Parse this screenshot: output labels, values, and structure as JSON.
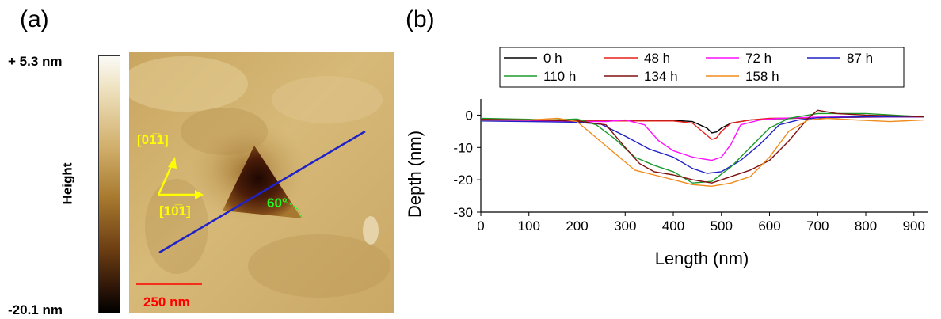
{
  "figure": {
    "panel_a": {
      "label": "(a)",
      "colorbar": {
        "max_label": "+ 5.3 nm",
        "min_label": "-20.1 nm",
        "title": "Height"
      },
      "annotations": {
        "dir1": "[01̅1]",
        "dir2": "[10̅1]",
        "angle": "60°",
        "scale_bar": "250 nm"
      },
      "colors": {
        "arrow": "#ffff00",
        "line": "#1f22c8",
        "angle": "#22ff22",
        "scale": "#ff0000"
      }
    },
    "panel_b": {
      "label": "(b)"
    }
  },
  "chart_data": {
    "type": "line",
    "xlabel": "Length (nm)",
    "ylabel": "Depth (nm)",
    "xlim": [
      0,
      930
    ],
    "ylim": [
      -30,
      5
    ],
    "xticks": [
      0,
      100,
      200,
      300,
      400,
      500,
      600,
      700,
      800,
      900
    ],
    "yticks": [
      0,
      -10,
      -20,
      -30
    ],
    "legend_position": "top",
    "series": [
      {
        "name": "0 h",
        "color": "#000000",
        "x": [
          0,
          100,
          200,
          300,
          400,
          440,
          470,
          480,
          490,
          500,
          520,
          560,
          600,
          700,
          800,
          920
        ],
        "y": [
          -1.3,
          -1.5,
          -1.8,
          -1.8,
          -1.6,
          -2,
          -4,
          -5.5,
          -5.2,
          -4,
          -2.5,
          -1.5,
          -1.2,
          -0.8,
          -0.6,
          -0.5
        ]
      },
      {
        "name": "48 h",
        "color": "#e8201a",
        "x": [
          0,
          100,
          200,
          300,
          400,
          440,
          460,
          480,
          490,
          500,
          520,
          560,
          600,
          700,
          800,
          920
        ],
        "y": [
          -1.3,
          -1.5,
          -1.8,
          -1.8,
          -1.8,
          -2.5,
          -5,
          -7.5,
          -7,
          -5,
          -2.5,
          -1.5,
          -1.0,
          -0.8,
          -0.6,
          -0.5
        ]
      },
      {
        "name": "72 h",
        "color": "#ff10ff",
        "x": [
          0,
          100,
          200,
          260,
          300,
          340,
          370,
          400,
          440,
          480,
          500,
          520,
          540,
          580,
          620,
          700,
          800,
          920
        ],
        "y": [
          -1.5,
          -1.8,
          -2.0,
          -2.0,
          -1.5,
          -3,
          -8,
          -11,
          -13,
          -14,
          -13,
          -9,
          -3,
          -1.5,
          -1.0,
          -0.6,
          -0.5,
          -0.5
        ]
      },
      {
        "name": "87 h",
        "color": "#1f22c8",
        "x": [
          0,
          100,
          200,
          250,
          300,
          350,
          400,
          440,
          470,
          500,
          540,
          580,
          620,
          660,
          700,
          800,
          920
        ],
        "y": [
          -1.8,
          -2.0,
          -2.2,
          -2.8,
          -6.5,
          -10.5,
          -13,
          -16.5,
          -18,
          -17.5,
          -14,
          -9,
          -3,
          -1.5,
          -0.8,
          -0.5,
          -0.5
        ]
      },
      {
        "name": "110 h",
        "color": "#1b9a2c",
        "x": [
          0,
          100,
          150,
          200,
          240,
          280,
          320,
          360,
          400,
          440,
          480,
          520,
          560,
          600,
          640,
          700,
          800,
          920
        ],
        "y": [
          -1.0,
          -1.3,
          -1.5,
          -1.2,
          -3,
          -7.5,
          -13,
          -15.5,
          -17.5,
          -21,
          -20.5,
          -16,
          -10,
          -4,
          -1,
          0.5,
          0.5,
          -0.5
        ]
      },
      {
        "name": "134 h",
        "color": "#801010",
        "x": [
          0,
          100,
          200,
          260,
          300,
          330,
          360,
          400,
          440,
          480,
          520,
          560,
          600,
          640,
          680,
          700,
          740,
          800,
          920
        ],
        "y": [
          -1.3,
          -1.5,
          -1.8,
          -3,
          -10,
          -15,
          -17.5,
          -18.5,
          -20,
          -21,
          -19,
          -17,
          -14,
          -8,
          -1,
          1.5,
          0.5,
          0,
          -0.5
        ]
      },
      {
        "name": "158 h",
        "color": "#f08c1c",
        "x": [
          0,
          100,
          160,
          200,
          240,
          280,
          320,
          360,
          400,
          440,
          480,
          520,
          560,
          600,
          640,
          680,
          720,
          780,
          850,
          920
        ],
        "y": [
          -1.5,
          -1.5,
          -1.0,
          -2.0,
          -7,
          -12,
          -17,
          -18.5,
          -20,
          -21.5,
          -22,
          -21,
          -19,
          -13,
          -5,
          -1.5,
          -1.0,
          -1.5,
          -2.0,
          -1.5
        ]
      }
    ]
  }
}
